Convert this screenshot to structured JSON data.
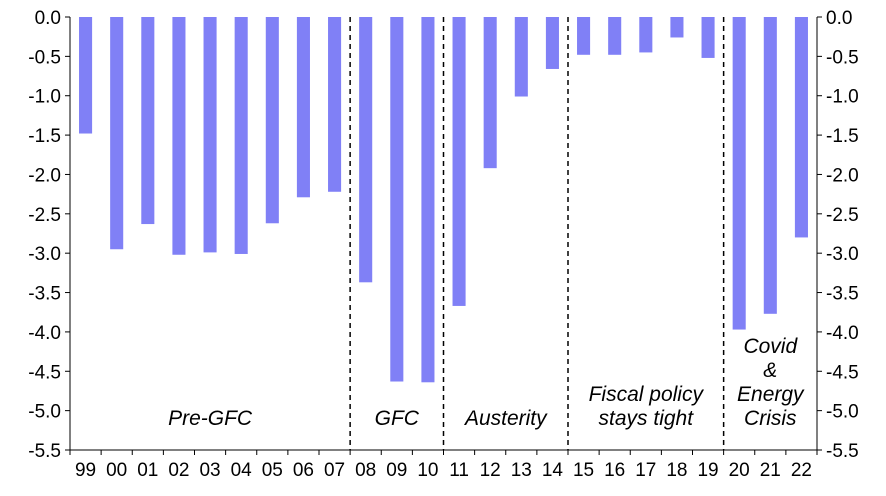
{
  "chart_data": {
    "type": "bar",
    "title": "",
    "xlabel": "",
    "ylabel": "",
    "ylim": [
      -5.5,
      0.0
    ],
    "y_ticks": [
      "0.0",
      "-0.5",
      "-1.0",
      "-1.5",
      "-2.0",
      "-2.5",
      "-3.0",
      "-3.5",
      "-4.0",
      "-4.5",
      "-5.0",
      "-5.5"
    ],
    "categories": [
      "99",
      "00",
      "01",
      "02",
      "03",
      "04",
      "05",
      "06",
      "07",
      "08",
      "09",
      "10",
      "11",
      "12",
      "13",
      "14",
      "15",
      "16",
      "17",
      "18",
      "19",
      "20",
      "21",
      "22"
    ],
    "values": [
      -1.48,
      -2.95,
      -2.63,
      -3.02,
      -2.99,
      -3.01,
      -2.62,
      -2.29,
      -2.22,
      -3.37,
      -4.63,
      -4.64,
      -3.67,
      -1.92,
      -1.01,
      -0.66,
      -0.48,
      -0.48,
      -0.45,
      -0.26,
      -0.52,
      -3.97,
      -3.77,
      -2.8
    ],
    "bar_color": "#8080f6",
    "axes_on_both_sides": true,
    "grid": false,
    "period_dividers_after": [
      "07",
      "10",
      "14",
      "19"
    ],
    "periods": [
      {
        "lines": [
          "Pre-GFC"
        ]
      },
      {
        "lines": [
          "GFC"
        ]
      },
      {
        "lines": [
          "Austerity"
        ]
      },
      {
        "lines": [
          "Fiscal policy",
          "stays tight"
        ]
      },
      {
        "lines": [
          "Covid",
          "&",
          "Energy",
          "Crisis"
        ]
      }
    ]
  }
}
